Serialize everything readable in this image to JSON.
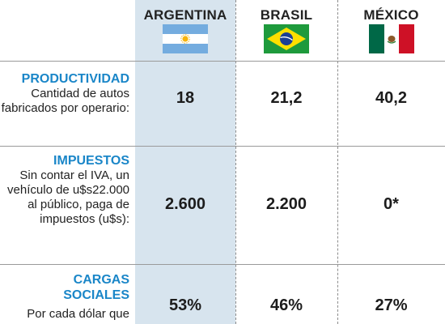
{
  "chart_data": {
    "type": "table",
    "columns": [
      "ARGENTINA",
      "BRASIL",
      "MÉXICO"
    ],
    "rows": [
      {
        "title": "PRODUCTIVIDAD",
        "description": "Cantidad de autos fabricados por operario:",
        "values": [
          "18",
          "21,2",
          "40,2"
        ]
      },
      {
        "title": "IMPUESTOS",
        "description": "Sin contar el IVA, un vehículo de u$s22.000 al público, paga de impuestos (u$s):",
        "values": [
          "2.600",
          "2.200",
          "0*"
        ]
      },
      {
        "title": "CARGAS SOCIALES",
        "description": "Por cada dólar que",
        "values": [
          "53%",
          "46%",
          "27%"
        ]
      }
    ],
    "highlighted_column": "ARGENTINA"
  },
  "colors": {
    "title_blue": "#1a86c8",
    "highlight_column": "#d7e4ee",
    "text": "#1c1c1c"
  },
  "icons": [
    "flag-argentina-icon",
    "flag-brazil-icon",
    "flag-mexico-icon"
  ]
}
